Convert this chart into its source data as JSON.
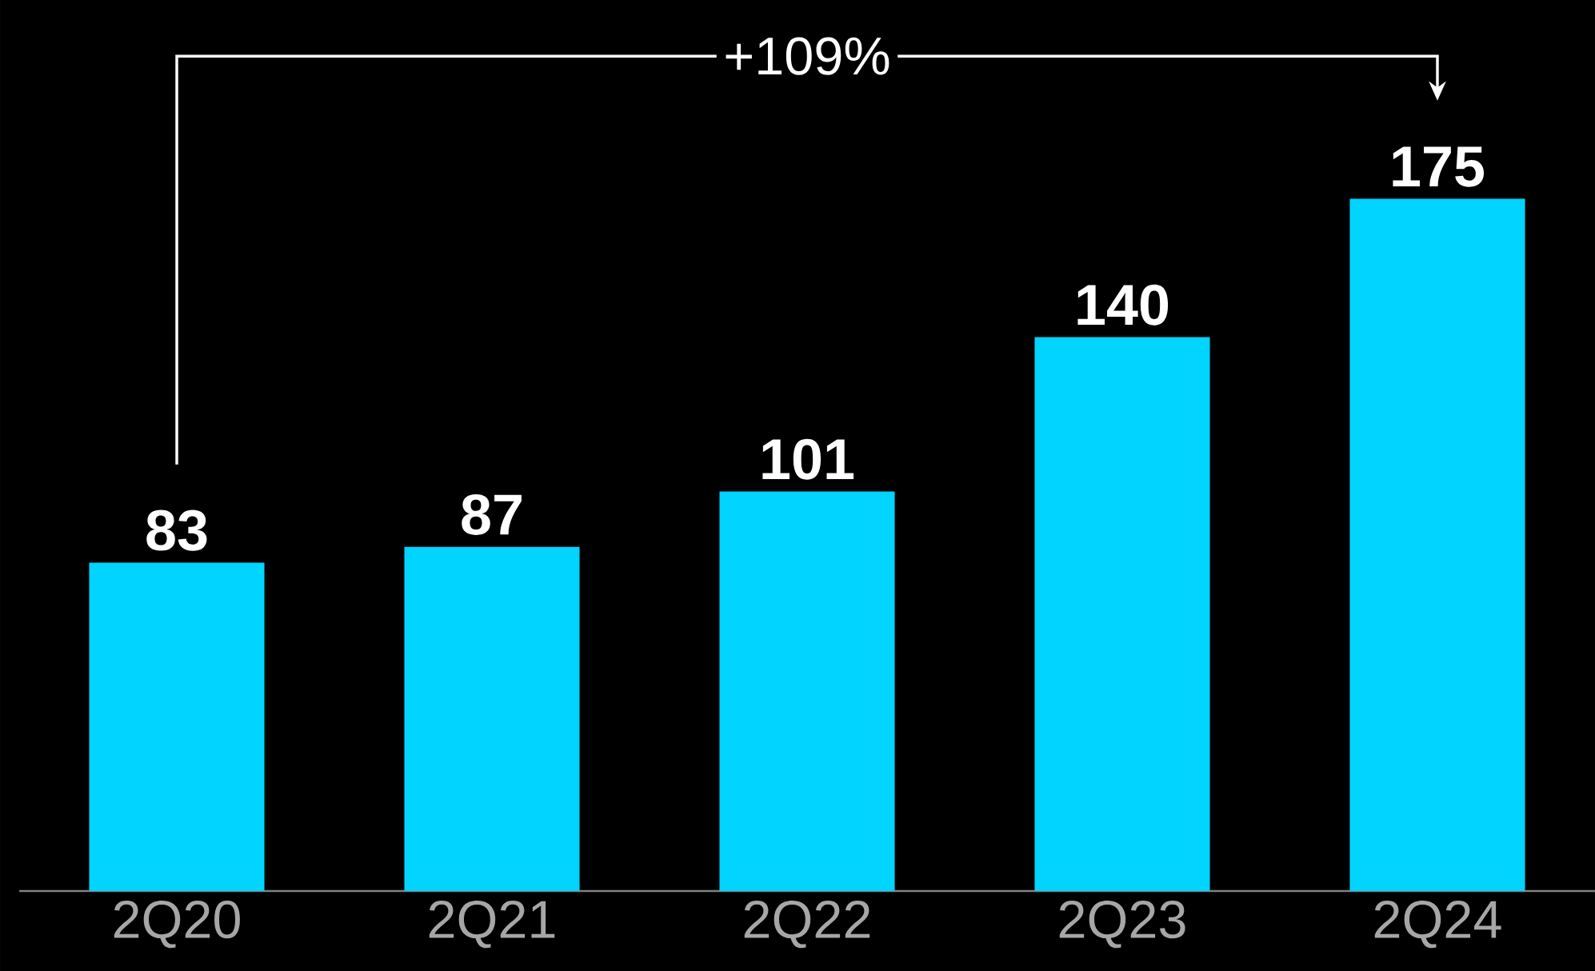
{
  "chart_data": {
    "type": "bar",
    "categories": [
      "2Q20",
      "2Q21",
      "2Q22",
      "2Q23",
      "2Q24"
    ],
    "values": [
      83,
      87,
      101,
      140,
      175
    ],
    "color": "#00d4ff",
    "data_labels": true,
    "annotations": [
      "+109%"
    ]
  }
}
